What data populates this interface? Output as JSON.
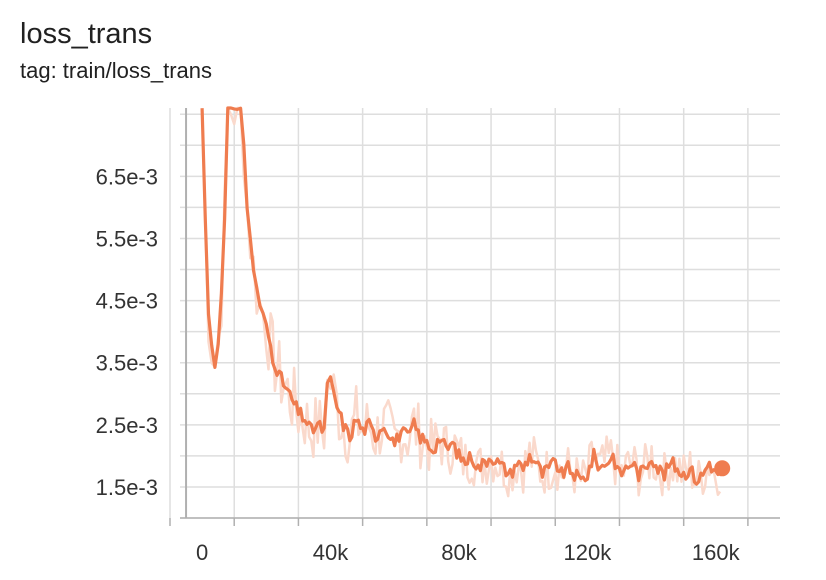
{
  "header": {
    "title": "loss_trans",
    "tag": "tag: train/loss_trans"
  },
  "colors": {
    "series": "#ef7c4f",
    "raw": "#fad9cc",
    "grid": "#dedede",
    "zero_line": "#8e8e8e",
    "axis": "#b0b0b0"
  },
  "chart_data": {
    "type": "line",
    "title": "loss_trans",
    "subtitle": "tag: train/loss_trans",
    "xlabel": "",
    "ylabel": "",
    "xlim": [
      -10000,
      180000
    ],
    "ylim": [
      0.001,
      0.0076
    ],
    "xticks": [
      0,
      40000,
      80000,
      120000,
      160000
    ],
    "xtick_labels": [
      "0",
      "40k",
      "80k",
      "120k",
      "160k"
    ],
    "yticks": [
      0.0015,
      0.0025,
      0.0035,
      0.0045,
      0.0055,
      0.0065
    ],
    "ytick_labels": [
      "1.5e-3",
      "2.5e-3",
      "3.5e-3",
      "4.5e-3",
      "5.5e-3",
      "6.5e-3"
    ],
    "grid": true,
    "series": [
      {
        "x": [
          0,
          1000,
          2000,
          3000,
          4000,
          5000,
          6000,
          7000,
          8000,
          9000,
          10000,
          11000,
          12000,
          13000,
          14000,
          15000,
          16000,
          17000,
          18000,
          19000,
          20000,
          22000,
          24000,
          26000,
          28000,
          30000,
          32000,
          34000,
          36000,
          38000,
          39000,
          40000,
          41000,
          42000,
          44000,
          46000,
          48000,
          50000,
          52000,
          54000,
          56000,
          58000,
          60000,
          62000,
          64000,
          66000,
          68000,
          70000,
          72000,
          74000,
          76000,
          78000,
          80000,
          82000,
          84000,
          86000,
          88000,
          90000,
          92000,
          94000,
          96000,
          98000,
          100000,
          102000,
          104000,
          106000,
          108000,
          110000,
          112000,
          114000,
          116000,
          118000,
          120000,
          122000,
          124000,
          126000,
          128000,
          130000,
          132000,
          134000,
          136000,
          138000,
          140000,
          142000,
          144000,
          146000,
          148000,
          150000,
          152000,
          154000,
          156000,
          158000,
          160000,
          162000
        ],
        "y": [
          0.0076,
          0.0058,
          0.0043,
          0.0038,
          0.0035,
          0.0039,
          0.0046,
          0.0058,
          0.0076,
          0.0076,
          0.0076,
          0.0076,
          0.0076,
          0.007,
          0.006,
          0.0055,
          0.005,
          0.0047,
          0.0044,
          0.0043,
          0.0041,
          0.0036,
          0.0033,
          0.0031,
          0.0029,
          0.0027,
          0.0026,
          0.0024,
          0.0025,
          0.0024,
          0.0031,
          0.0032,
          0.003,
          0.0028,
          0.0025,
          0.0023,
          0.0026,
          0.0024,
          0.0025,
          0.0023,
          0.0025,
          0.0024,
          0.0022,
          0.0024,
          0.0023,
          0.0025,
          0.0023,
          0.0022,
          0.0021,
          0.0023,
          0.0021,
          0.0022,
          0.002,
          0.0019,
          0.002,
          0.0018,
          0.0019,
          0.002,
          0.0019,
          0.0018,
          0.0017,
          0.0019,
          0.0018,
          0.002,
          0.0019,
          0.0017,
          0.0018,
          0.0019,
          0.0017,
          0.0018,
          0.0017,
          0.0016,
          0.0017,
          0.002,
          0.0018,
          0.0019,
          0.002,
          0.0017,
          0.0018,
          0.0019,
          0.0017,
          0.0018,
          0.002,
          0.0018,
          0.0017,
          0.0019,
          0.0018,
          0.0017,
          0.0018,
          0.0016,
          0.0017,
          0.0019,
          0.0017,
          0.0018
        ]
      }
    ]
  }
}
